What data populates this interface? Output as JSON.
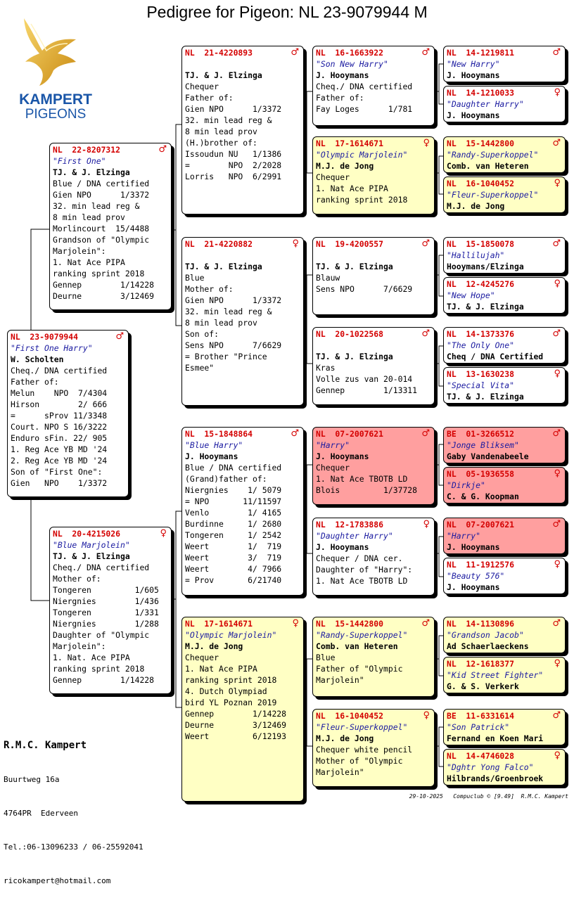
{
  "title": "Pedigree for Pigeon: NL  23-9079944 M",
  "logo": {
    "line1": "KAMPERT",
    "line2": "PIGEONS"
  },
  "cards": {
    "p0": {
      "ring": "NL  23-9079944",
      "sex": "♂",
      "name": "\"First One Harry\"",
      "owner": "W. Scholten",
      "lines": [
        "Cheq./ DNA certified",
        "Father of:",
        "Melun    NPO  7/4304",
        "Hirson        2/ 666",
        "=      sProv 11/3348",
        "Court. NPO S 16/3222",
        "Enduro sFin. 22/ 905",
        "1. Reg Ace YB MD '24",
        "2. Reg Ace YB MD '24",
        "Son of \"First One\":",
        "Gien   NPO    1/3372"
      ]
    },
    "f": {
      "ring": "NL  22-8207312",
      "sex": "♂",
      "name": "\"First One\"",
      "owner": "TJ. & J. Elzinga",
      "lines": [
        "Blue / DNA certified",
        "Gien NPO      1/3372",
        "32. min lead reg &",
        "8 min lead prov",
        "Morlincourt  15/4488",
        "Grandson of \"Olympic",
        "Marjolein\":",
        "1. Nat Ace PIPA",
        "ranking sprint 2018",
        "Gennep        1/14228",
        "Deurne        3/12469"
      ]
    },
    "m": {
      "ring": "NL  20-4215026",
      "sex": "♀",
      "name": "\"Blue Marjolein\"",
      "owner": "TJ. & J. Elzinga",
      "lines": [
        "Cheq./ DNA certified",
        "Mother of:",
        "Tongeren         1/605",
        "Niergnies        1/436",
        "Tongeren         1/331",
        "Niergnies        1/288",
        "Daughter of \"Olympic",
        "Marjolein\":",
        "1. Nat. Ace PIPA",
        "ranking sprint 2018",
        "Gennep        1/14228"
      ]
    },
    "ff": {
      "ring": "NL  21-4220893",
      "sex": "♂",
      "name": "",
      "owner": "TJ. & J. Elzinga",
      "lines": [
        "Chequer",
        "Father of:",
        "Gien NPO      1/3372",
        "32. min lead reg &",
        "8 min lead prov",
        "(H.)brother of:",
        "Issoudun NU   1/1386",
        "=        NPO  2/2028",
        "Lorris   NPO  6/2991"
      ]
    },
    "fm": {
      "ring": "NL  21-4220882",
      "sex": "♀",
      "name": "",
      "owner": "TJ. & J. Elzinga",
      "lines": [
        "Blue",
        "Mother of:",
        "Gien NPO      1/3372",
        "32. min lead reg &",
        "8 min lead prov",
        "Son of:",
        "Sens NPO      7/6629",
        "= Brother \"Prince",
        "Esmee\""
      ]
    },
    "mf": {
      "ring": "NL  15-1848864",
      "sex": "♂",
      "name": "\"Blue Harry\"",
      "owner": "J. Hooymans",
      "lines": [
        "Blue / DNA certified",
        "(Grand)father of:",
        "Niergnies    1/ 5079",
        "= NPO       11/11597",
        "Venlo        1/ 4165",
        "Burdinne     1/ 2680",
        "Tongeren     1/ 2542",
        "Weert        1/  719",
        "Weert        3/  719",
        "Weert        4/ 7966",
        "= Prov       6/21740"
      ]
    },
    "mm": {
      "ring": "NL  17-1614671",
      "sex": "♀",
      "name": "\"Olympic Marjolein\"",
      "owner": "M.J. de Jong",
      "lines": [
        "Chequer",
        "1. Nat Ace PIPA",
        "ranking sprint 2018",
        "4. Dutch Olympiad",
        "bird YL Poznan 2019",
        "Gennep        1/14228",
        "Deurne        3/12469",
        "Weert         6/12193"
      ]
    },
    "fff": {
      "ring": "NL  16-1663922",
      "sex": "♂",
      "name": "\"Son New Harry\"",
      "owner": "J. Hooymans",
      "lines": [
        "Cheq./ DNA certified",
        "Father of:",
        "Fay Loges      1/781"
      ]
    },
    "ffm": {
      "ring": "NL  17-1614671",
      "sex": "♀",
      "name": "\"Olympic Marjolein\"",
      "owner": "M.J. de Jong",
      "lines": [
        "Chequer",
        "1. Nat Ace PIPA",
        "ranking sprint 2018"
      ]
    },
    "fmf": {
      "ring": "NL  19-4200557",
      "sex": "♂",
      "name": "",
      "owner": "TJ. & J. Elzinga",
      "lines": [
        "Blauw",
        "Sens NPO      7/6629"
      ]
    },
    "fmm": {
      "ring": "NL  20-1022568",
      "sex": "♂",
      "name": "",
      "owner": "TJ. & J. Elzinga",
      "lines": [
        "Kras",
        "Volle zus van 20-014",
        "Gennep        1/13311"
      ]
    },
    "mff": {
      "ring": "NL  07-2007621",
      "sex": "♂",
      "name": "\"Harry\"",
      "owner": "J. Hooymans",
      "lines": [
        "Chequer",
        "1. Nat Ace TBOTB LD",
        "Blois         1/37728"
      ]
    },
    "mfm": {
      "ring": "NL  12-1783886",
      "sex": "♀",
      "name": "\"Daughter Harry\"",
      "owner": "J. Hooymans",
      "lines": [
        "Chequer / DNA cer.",
        "Daughter of \"Harry\":",
        "1. Nat Ace TBOTB LD"
      ]
    },
    "mmf": {
      "ring": "NL  15-1442800",
      "sex": "♂",
      "name": "\"Randy-Superkoppel\"",
      "owner": "Comb. van Heteren",
      "lines": [
        "Blue",
        "Father of \"Olympic",
        "Marjolein\""
      ]
    },
    "mmm": {
      "ring": "NL  16-1040452",
      "sex": "♀",
      "name": "\"Fleur-Superkoppel\"",
      "owner": "M.J. de Jong",
      "lines": [
        "Chequer white pencil",
        "Mother of \"Olympic",
        "Marjolein\""
      ]
    },
    "g1": {
      "ring": "NL  14-1219811",
      "sex": "♂",
      "name": "\"New Harry\"",
      "owner": "J. Hooymans",
      "lines": []
    },
    "g2": {
      "ring": "NL  14-1210033",
      "sex": "♀",
      "name": "\"Daughter Harry\"",
      "owner": "J. Hooymans",
      "lines": []
    },
    "g3": {
      "ring": "NL  15-1442800",
      "sex": "♂",
      "name": "\"Randy-Superkoppel\"",
      "owner": "Comb. van Heteren",
      "lines": []
    },
    "g4": {
      "ring": "NL  16-1040452",
      "sex": "♀",
      "name": "\"Fleur-Superkoppel\"",
      "owner": "M.J. de Jong",
      "lines": []
    },
    "g5": {
      "ring": "NL  15-1850078",
      "sex": "♂",
      "name": "\"Hallilujah\"",
      "owner": "Hooymans/Elzinga",
      "lines": []
    },
    "g6": {
      "ring": "NL  12-4245276",
      "sex": "♀",
      "name": "\"New Hope\"",
      "owner": "TJ. & J. Elzinga",
      "lines": []
    },
    "g7": {
      "ring": "NL  14-1373376",
      "sex": "♂",
      "name": "\"The Only One\"",
      "owner": "Cheq / DNA Certified",
      "lines": []
    },
    "g8": {
      "ring": "NL  13-1630238",
      "sex": "♀",
      "name": "\"Special Vita\"",
      "owner": "TJ. & J. Elzinga",
      "lines": []
    },
    "g9": {
      "ring": "BE  01-3266512",
      "sex": "♂",
      "name": "\"Jonge Bliksem\"",
      "owner": "Gaby Vandenabeele",
      "lines": []
    },
    "g10": {
      "ring": "NL  05-1936558",
      "sex": "♀",
      "name": "\"Dirkje\"",
      "owner": "C. & G. Koopman",
      "lines": []
    },
    "g11": {
      "ring": "NL  07-2007621",
      "sex": "♂",
      "name": "\"Harry\"",
      "owner": "J. Hooymans",
      "lines": []
    },
    "g12": {
      "ring": "NL  11-1912576",
      "sex": "♀",
      "name": "\"Beauty 576\"",
      "owner": "J. Hooymans",
      "lines": []
    },
    "g13": {
      "ring": "NL  14-1130896",
      "sex": "♂",
      "name": "\"Grandson Jacob\"",
      "owner": "Ad Schaerlaeckens",
      "lines": []
    },
    "g14": {
      "ring": "NL  12-1618377",
      "sex": "♀",
      "name": "\"Kid Street Fighter\"",
      "owner": "G. & S. Verkerk",
      "lines": []
    },
    "g15": {
      "ring": "BE  11-6331614",
      "sex": "♂",
      "name": "\"Son Patrick\"",
      "owner": "Fernand en Koen Mari",
      "lines": []
    },
    "g16": {
      "ring": "NL  14-4746028",
      "sex": "♀",
      "name": "\"Dghtr Yong Falco\"",
      "owner": "Hilbrands/Groenbroek",
      "lines": []
    }
  },
  "breeder": {
    "name": "R.M.C. Kampert",
    "street": "Buurtweg 16a",
    "city": "4764PR  Ederveen",
    "phone": "Tel.:06-13096233 / 06-25592041",
    "email": "ricokampert@hotmail.com"
  },
  "footer": "29-10-2025   Compuclub © [9.49]  R.M.C. Kampert"
}
